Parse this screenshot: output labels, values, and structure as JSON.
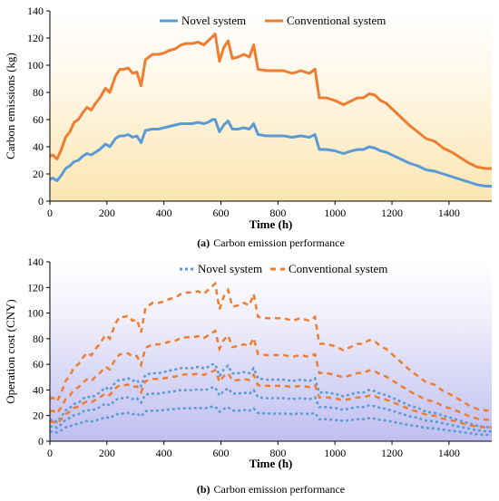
{
  "chart_data": [
    {
      "type": "line",
      "caption_prefix": "(a)",
      "caption_text": "Carbon emission performance",
      "xlabel": "Time (h)",
      "ylabel": "Carbon emissions (kg)",
      "xlim": [
        0,
        1550
      ],
      "ylim": [
        0,
        140
      ],
      "xticks": [
        0,
        200,
        400,
        600,
        800,
        1000,
        1200,
        1400
      ],
      "yticks": [
        0,
        20,
        40,
        60,
        80,
        100,
        120,
        140
      ],
      "grid": false,
      "legend_position": "top",
      "background": "gradient (white above, pale yellow toward bottom)",
      "series": [
        {
          "name": "Novel system",
          "color": "#5b9bd5",
          "style": "solid",
          "points": [
            [
              0,
              16
            ],
            [
              10,
              17
            ],
            [
              25,
              15
            ],
            [
              40,
              19
            ],
            [
              55,
              24
            ],
            [
              70,
              26
            ],
            [
              85,
              29
            ],
            [
              100,
              30
            ],
            [
              115,
              33
            ],
            [
              130,
              35
            ],
            [
              145,
              34
            ],
            [
              160,
              36
            ],
            [
              175,
              38
            ],
            [
              195,
              42
            ],
            [
              210,
              40
            ],
            [
              230,
              46
            ],
            [
              245,
              48
            ],
            [
              260,
              48
            ],
            [
              275,
              49
            ],
            [
              290,
              47
            ],
            [
              305,
              48
            ],
            [
              320,
              43
            ],
            [
              335,
              52
            ],
            [
              360,
              53
            ],
            [
              380,
              53
            ],
            [
              400,
              54
            ],
            [
              420,
              55
            ],
            [
              440,
              56
            ],
            [
              460,
              57
            ],
            [
              480,
              57
            ],
            [
              500,
              57
            ],
            [
              520,
              58
            ],
            [
              540,
              57
            ],
            [
              555,
              58
            ],
            [
              570,
              60
            ],
            [
              580,
              60
            ],
            [
              595,
              51
            ],
            [
              610,
              56
            ],
            [
              625,
              59
            ],
            [
              640,
              53
            ],
            [
              660,
              53
            ],
            [
              680,
              54
            ],
            [
              700,
              53
            ],
            [
              715,
              57
            ],
            [
              730,
              49
            ],
            [
              760,
              48
            ],
            [
              790,
              48
            ],
            [
              820,
              48
            ],
            [
              850,
              47
            ],
            [
              880,
              48
            ],
            [
              910,
              47
            ],
            [
              930,
              49
            ],
            [
              945,
              38
            ],
            [
              970,
              38
            ],
            [
              1000,
              37
            ],
            [
              1030,
              35
            ],
            [
              1060,
              37
            ],
            [
              1080,
              38
            ],
            [
              1100,
              38
            ],
            [
              1120,
              40
            ],
            [
              1140,
              39
            ],
            [
              1160,
              37
            ],
            [
              1180,
              36
            ],
            [
              1200,
              34
            ],
            [
              1230,
              31
            ],
            [
              1260,
              28
            ],
            [
              1290,
              26
            ],
            [
              1320,
              23
            ],
            [
              1350,
              22
            ],
            [
              1380,
              20
            ],
            [
              1410,
              18
            ],
            [
              1440,
              16
            ],
            [
              1470,
              14
            ],
            [
              1500,
              12
            ],
            [
              1530,
              11
            ],
            [
              1550,
              11
            ]
          ]
        },
        {
          "name": "Conventional system",
          "color": "#ed7d31",
          "style": "solid",
          "points": [
            [
              0,
              33
            ],
            [
              10,
              34
            ],
            [
              25,
              31
            ],
            [
              40,
              38
            ],
            [
              55,
              47
            ],
            [
              70,
              51
            ],
            [
              85,
              58
            ],
            [
              100,
              60
            ],
            [
              115,
              65
            ],
            [
              130,
              69
            ],
            [
              145,
              67
            ],
            [
              160,
              72
            ],
            [
              175,
              76
            ],
            [
              195,
              83
            ],
            [
              210,
              80
            ],
            [
              230,
              92
            ],
            [
              245,
              97
            ],
            [
              260,
              97
            ],
            [
              275,
              98
            ],
            [
              290,
              94
            ],
            [
              305,
              95
            ],
            [
              320,
              85
            ],
            [
              335,
              104
            ],
            [
              360,
              108
            ],
            [
              380,
              108
            ],
            [
              400,
              109
            ],
            [
              420,
              111
            ],
            [
              440,
              112
            ],
            [
              460,
              115
            ],
            [
              480,
              116
            ],
            [
              500,
              116
            ],
            [
              520,
              117
            ],
            [
              540,
              115
            ],
            [
              555,
              118
            ],
            [
              570,
              121
            ],
            [
              580,
              123
            ],
            [
              595,
              103
            ],
            [
              610,
              113
            ],
            [
              625,
              118
            ],
            [
              640,
              105
            ],
            [
              660,
              106
            ],
            [
              680,
              108
            ],
            [
              700,
              106
            ],
            [
              715,
              115
            ],
            [
              730,
              97
            ],
            [
              760,
              96
            ],
            [
              790,
              96
            ],
            [
              820,
              96
            ],
            [
              850,
              94
            ],
            [
              880,
              96
            ],
            [
              910,
              94
            ],
            [
              930,
              97
            ],
            [
              945,
              76
            ],
            [
              970,
              76
            ],
            [
              1000,
              74
            ],
            [
              1030,
              71
            ],
            [
              1060,
              74
            ],
            [
              1080,
              76
            ],
            [
              1100,
              76
            ],
            [
              1120,
              79
            ],
            [
              1140,
              78
            ],
            [
              1160,
              74
            ],
            [
              1180,
              72
            ],
            [
              1200,
              68
            ],
            [
              1230,
              62
            ],
            [
              1260,
              56
            ],
            [
              1290,
              51
            ],
            [
              1320,
              46
            ],
            [
              1350,
              44
            ],
            [
              1380,
              39
            ],
            [
              1410,
              36
            ],
            [
              1440,
              32
            ],
            [
              1470,
              28
            ],
            [
              1500,
              25
            ],
            [
              1530,
              24
            ],
            [
              1550,
              24
            ]
          ]
        }
      ]
    },
    {
      "type": "line",
      "caption_prefix": "(b)",
      "caption_text": "Carbon emission performance",
      "xlabel": "Time (h)",
      "ylabel": "Operation cost (CNY)",
      "xlim": [
        0,
        1550
      ],
      "ylim": [
        0,
        140
      ],
      "xticks": [
        0,
        200,
        400,
        600,
        800,
        1000,
        1200,
        1400
      ],
      "yticks": [
        0,
        20,
        40,
        60,
        80,
        100,
        120,
        140
      ],
      "grid": false,
      "legend_position": "top",
      "background": "gradient (white above, lavender toward bottom)",
      "note": "Each system is drawn as several dashed bands scaled from its emission curve",
      "band_scales": {
        "Novel system": [
          1.0,
          0.7,
          0.45
        ],
        "Conventional system": [
          1.0,
          0.7,
          0.45
        ]
      },
      "series": [
        {
          "name": "Novel system",
          "color": "#5b9bd5",
          "style": "dashed"
        },
        {
          "name": "Conventional system",
          "color": "#ed7d31",
          "style": "dashed"
        }
      ]
    }
  ]
}
